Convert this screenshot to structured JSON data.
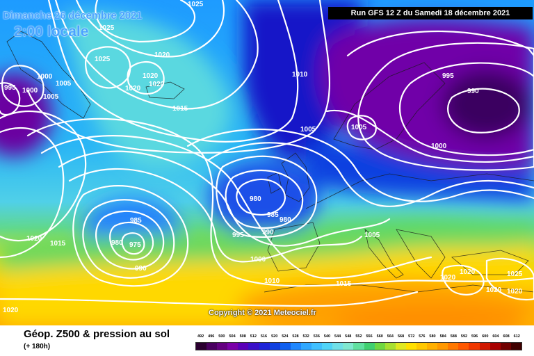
{
  "header": {
    "date_text": "Dimanche 26 décembre 2021",
    "time_text": "2:00 locale",
    "run_text": "Run GFS 12 Z du Samedi 18 décembre 2021"
  },
  "copyright": "Copyright © 2021 Meteociel.fr",
  "footer": {
    "title": "Géop. Z500 & pression au sol",
    "subtitle": "(+ 180h)"
  },
  "isobar_labels": [
    "1025",
    "1025",
    "1025",
    "1020",
    "1020",
    "1020",
    "1020",
    "1000",
    "1000",
    "995",
    "1005",
    "1005",
    "1010",
    "1015",
    "995",
    "990",
    "1005",
    "1000",
    "1005",
    "980",
    "985",
    "980",
    "995",
    "990",
    "985",
    "980",
    "975",
    "990",
    "1020",
    "1015",
    "1020",
    "1000",
    "1010",
    "1015",
    "1005",
    "1020",
    "1020",
    "1020",
    "1020",
    "1025"
  ],
  "legend": {
    "ticks": [
      "492",
      "496",
      "500",
      "504",
      "508",
      "512",
      "516",
      "520",
      "524",
      "528",
      "532",
      "536",
      "540",
      "544",
      "548",
      "552",
      "556",
      "560",
      "564",
      "568",
      "572",
      "576",
      "580",
      "584",
      "588",
      "592",
      "596",
      "600",
      "604",
      "608",
      "612"
    ],
    "colors": [
      "#2b0030",
      "#4a0060",
      "#640080",
      "#7a00a8",
      "#5a00b8",
      "#3a10c8",
      "#1e24d8",
      "#1040e0",
      "#1060f0",
      "#2088ff",
      "#30a8ff",
      "#40c0ff",
      "#50d4f8",
      "#70e0e8",
      "#80e8d0",
      "#60e0a0",
      "#40d070",
      "#70d840",
      "#a8e030",
      "#e0e820",
      "#ffe000",
      "#ffc800",
      "#ffb000",
      "#ff9800",
      "#ff7800",
      "#ff5800",
      "#f03800",
      "#d01800",
      "#a80000",
      "#700000",
      "#400000"
    ]
  }
}
